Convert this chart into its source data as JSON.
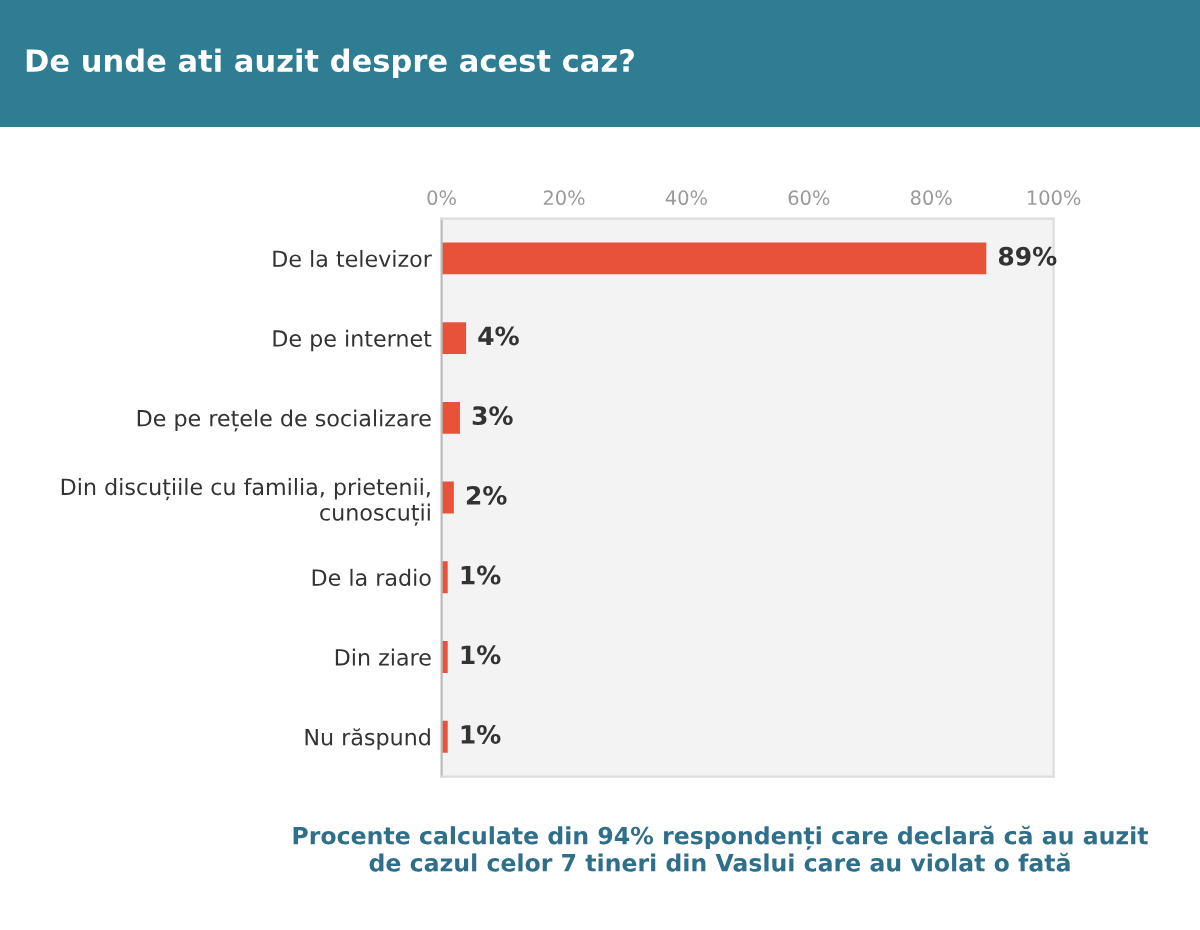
{
  "chart_data": {
    "type": "bar",
    "orientation": "horizontal",
    "title": "De unde ati auzit despre acest caz?",
    "categories": [
      "De la televizor",
      "De pe internet",
      "De pe rețele de socializare",
      "Din discuțiile cu familia, prietenii,\ncunoscuții",
      "De la radio",
      "Din ziare",
      "Nu răspund"
    ],
    "values": [
      89,
      4,
      3,
      2,
      1,
      1,
      1
    ],
    "value_labels": [
      "89%",
      "4%",
      "3%",
      "2%",
      "1%",
      "1%",
      "1%"
    ],
    "color": "#e8523a",
    "xlim": [
      0,
      100
    ],
    "xticks": [
      {
        "value": 0,
        "label": "0%"
      },
      {
        "value": 20,
        "label": "20%"
      },
      {
        "value": 40,
        "label": "40%"
      },
      {
        "value": 60,
        "label": "60%"
      },
      {
        "value": 80,
        "label": "80%"
      },
      {
        "value": 100,
        "label": "100%"
      }
    ],
    "grid": false,
    "annotations": [
      "Procente calculate din 94% respondenți care declară că au auzit\nde cazul celor 7 tineri din Vaslui care au violat o fată"
    ]
  }
}
